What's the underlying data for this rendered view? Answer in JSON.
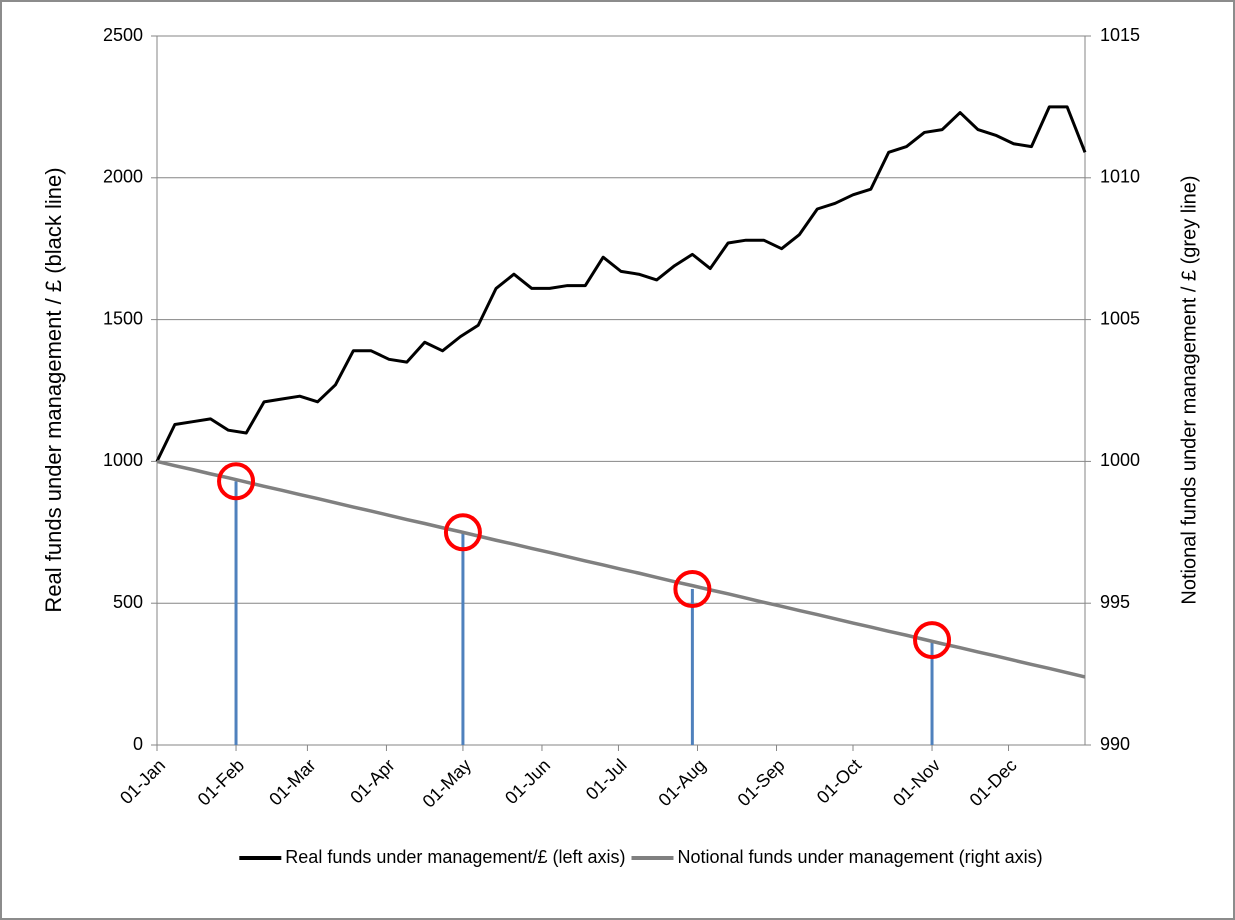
{
  "chart_data": {
    "type": "line",
    "y_label": "Real funds under management  / £ (black line)",
    "y2_label": "Notional funds under management / £ (grey line)",
    "x": [
      "01-Jan",
      "08-Jan",
      "15-Jan",
      "22-Jan",
      "29-Jan",
      "05-Feb",
      "12-Feb",
      "19-Feb",
      "26-Feb",
      "05-Mar",
      "12-Mar",
      "19-Mar",
      "26-Mar",
      "02-Apr",
      "09-Apr",
      "16-Apr",
      "23-Apr",
      "30-Apr",
      "07-May",
      "14-May",
      "21-May",
      "28-May",
      "04-Jun",
      "11-Jun",
      "18-Jun",
      "25-Jun",
      "02-Jul",
      "09-Jul",
      "16-Jul",
      "23-Jul",
      "30-Jul",
      "06-Aug",
      "13-Aug",
      "20-Aug",
      "27-Aug",
      "03-Sep",
      "10-Sep",
      "17-Sep",
      "24-Sep",
      "01-Oct",
      "08-Oct",
      "15-Oct",
      "22-Oct",
      "29-Oct",
      "05-Nov",
      "12-Nov",
      "19-Nov",
      "26-Nov",
      "03-Dec",
      "10-Dec",
      "17-Dec",
      "24-Dec",
      "31-Dec"
    ],
    "series": [
      {
        "name": "Real funds under management/£ (left axis)",
        "color": "#000000",
        "values": [
          1000,
          1130,
          1140,
          1150,
          1110,
          1100,
          1210,
          1220,
          1230,
          1210,
          1270,
          1390,
          1390,
          1360,
          1350,
          1420,
          1390,
          1440,
          1480,
          1610,
          1660,
          1610,
          1610,
          1620,
          1620,
          1720,
          1670,
          1660,
          1640,
          1690,
          1730,
          1680,
          1770,
          1780,
          1780,
          1750,
          1800,
          1890,
          1910,
          1940,
          1960,
          2090,
          2110,
          2160,
          2170,
          2230,
          2170,
          2150,
          2120,
          2110,
          2250,
          2250,
          2090
        ]
      },
      {
        "name": "Notional funds under management (right axis)",
        "color": "#808080",
        "axis": "y2",
        "values": [
          1000.0,
          999.85,
          999.71,
          999.56,
          999.42,
          999.27,
          999.12,
          998.98,
          998.83,
          998.69,
          998.54,
          998.39,
          998.25,
          998.1,
          997.95,
          997.81,
          997.66,
          997.52,
          997.37,
          997.22,
          997.08,
          996.93,
          996.79,
          996.64,
          996.49,
          996.35,
          996.2,
          996.06,
          995.91,
          995.76,
          995.62,
          995.47,
          995.33,
          995.18,
          995.03,
          994.89,
          994.74,
          994.6,
          994.45,
          994.3,
          994.16,
          994.01,
          993.87,
          993.72,
          993.57,
          993.43,
          993.28,
          993.14,
          992.99,
          992.84,
          992.7,
          992.55,
          992.4
        ]
      }
    ],
    "markers": [
      {
        "x": "01-Feb",
        "value": 999.3
      },
      {
        "x": "01-May",
        "value": 997.5
      },
      {
        "x": "30-Jul",
        "value": 995.5
      },
      {
        "x": "01-Nov",
        "value": 993.7
      }
    ],
    "marker_color": "#ff0000",
    "stem_color": "#4f81bd",
    "xlim": [
      "01-Jan",
      "31-Dec"
    ],
    "xticks": [
      "01-Jan",
      "01-Feb",
      "01-Mar",
      "01-Apr",
      "01-May",
      "01-Jun",
      "01-Jul",
      "01-Aug",
      "01-Sep",
      "01-Oct",
      "01-Nov",
      "01-Dec"
    ],
    "ylim": [
      0,
      2500
    ],
    "yticks": [
      0,
      500,
      1000,
      1500,
      2000,
      2500
    ],
    "y2lim": [
      990,
      1015
    ],
    "y2ticks": [
      990,
      995,
      1000,
      1005,
      1010,
      1015
    ],
    "grid": true,
    "legend": "bottom"
  }
}
